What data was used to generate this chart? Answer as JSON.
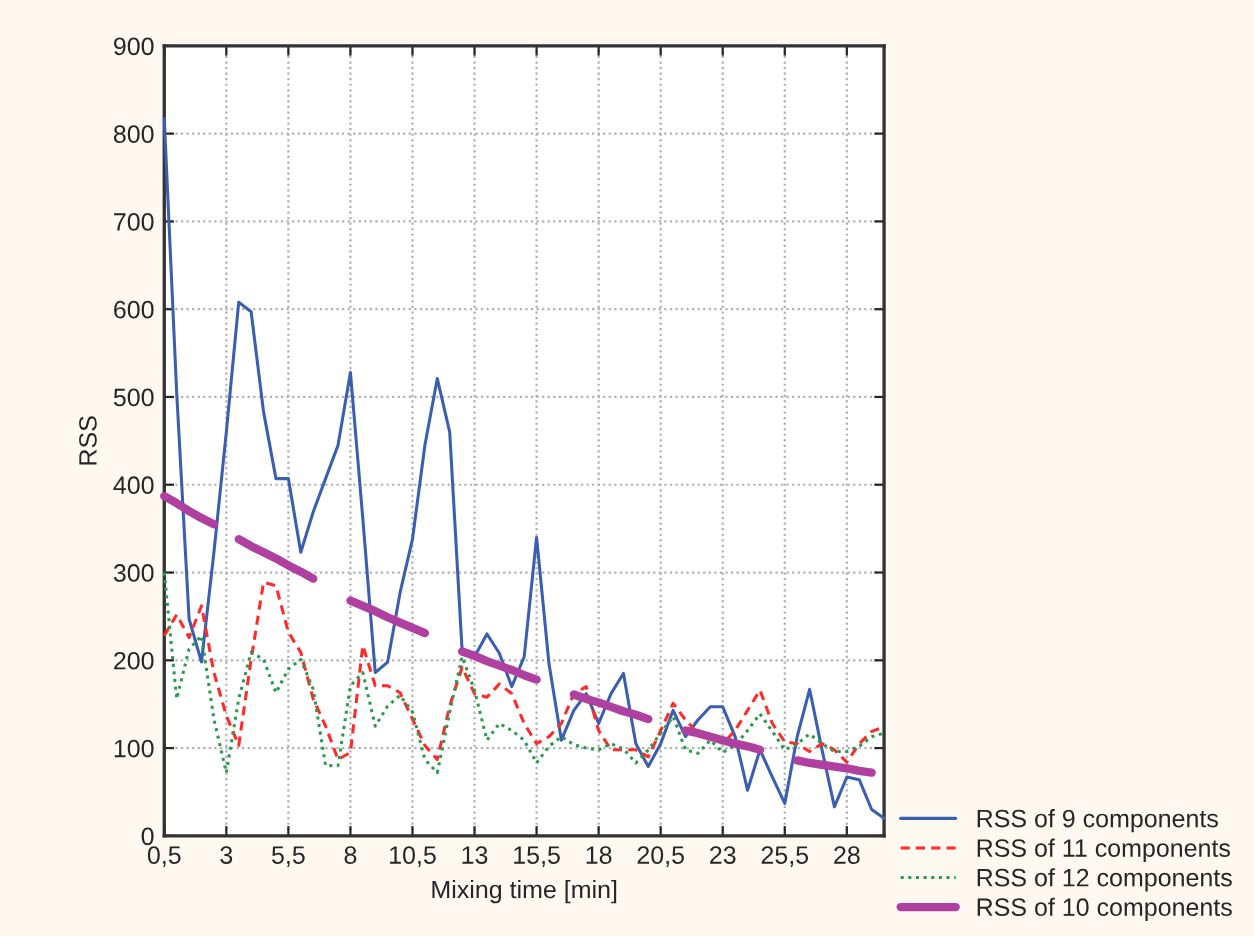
{
  "chart_data": {
    "type": "line",
    "xlabel": "Mixing time [min]",
    "ylabel": "RSS",
    "x": [
      0.5,
      1,
      1.5,
      2,
      2.5,
      3,
      3.5,
      4,
      4.5,
      5,
      5.5,
      6,
      6.5,
      7,
      7.5,
      8,
      8.5,
      9,
      9.5,
      10,
      10.5,
      11,
      11.5,
      12,
      12.5,
      13,
      13.5,
      14,
      14.5,
      15,
      15.5,
      16,
      16.5,
      17,
      17.5,
      18,
      18.5,
      19,
      19.5,
      20,
      20.5,
      21,
      21.5,
      22,
      22.5,
      23,
      23.5,
      24,
      24.5,
      25,
      25.5,
      26,
      26.5,
      27,
      27.5,
      28,
      28.5,
      29,
      29.5
    ],
    "series": [
      {
        "name": "RSS of 9 components",
        "color": "#3a5fb0",
        "line_style": "solid",
        "values": [
          817,
          505,
          247,
          198,
          323,
          460,
          608,
          597,
          483,
          407,
          407,
          323,
          369,
          407,
          445,
          528,
          361,
          186,
          198,
          277,
          338,
          445,
          521,
          460,
          211,
          204,
          230,
          208,
          170,
          204,
          340,
          196,
          109,
          143,
          162,
          128,
          162,
          185,
          105,
          79,
          105,
          143,
          113,
          132,
          147,
          147,
          113,
          52,
          98,
          67,
          37,
          113,
          167,
          98,
          33,
          67,
          64,
          30,
          20
        ]
      },
      {
        "name": "RSS of 11 components",
        "color": "#ff2a2a",
        "line_style": "dashed",
        "values": [
          228,
          252,
          226,
          262,
          186,
          137,
          103,
          201,
          289,
          285,
          232,
          209,
          156,
          125,
          87,
          95,
          217,
          171,
          171,
          163,
          133,
          103,
          87,
          148,
          192,
          162,
          158,
          173,
          162,
          128,
          105,
          113,
          128,
          162,
          170,
          120,
          98,
          98,
          98,
          90,
          120,
          151,
          132,
          117,
          113,
          105,
          120,
          143,
          166,
          128,
          107,
          105,
          96,
          105,
          98,
          84,
          105,
          119,
          124
        ]
      },
      {
        "name": "RSS of 12 components",
        "color": "#2a9a50",
        "line_style": "dotted",
        "values": [
          300,
          156,
          213,
          228,
          133,
          72,
          156,
          209,
          201,
          163,
          190,
          201,
          167,
          80,
          80,
          171,
          186,
          125,
          148,
          160,
          141,
          87,
          72,
          141,
          204,
          166,
          109,
          128,
          120,
          109,
          83,
          102,
          113,
          104,
          100,
          98,
          105,
          99,
          83,
          98,
          117,
          136,
          98,
          94,
          109,
          95,
          103,
          120,
          139,
          119,
          98,
          105,
          116,
          105,
          96,
          96,
          102,
          113,
          117
        ]
      },
      {
        "name": "RSS of 10 components",
        "color": "#b040a0",
        "line_style": "solid",
        "values": [
          387,
          379,
          370,
          362,
          355,
          null,
          338,
          330,
          323,
          316,
          308,
          301,
          293,
          null,
          null,
          268,
          262,
          256,
          249,
          243,
          237,
          231,
          null,
          null,
          210,
          205,
          199,
          194,
          189,
          183,
          178,
          null,
          null,
          161,
          156,
          152,
          147,
          142,
          138,
          133,
          null,
          null,
          120,
          117,
          113,
          109,
          105,
          102,
          98,
          null,
          null,
          86,
          83,
          81,
          79,
          77,
          74,
          72,
          null
        ]
      }
    ],
    "xlim": [
      0.5,
      29.5
    ],
    "xticks": [
      {
        "value": 0.5,
        "label": "0,5"
      },
      3,
      {
        "value": 5.5,
        "label": "5,5"
      },
      8,
      {
        "value": 10.5,
        "label": "10,5"
      },
      13,
      {
        "value": 15.5,
        "label": "15,5"
      },
      18,
      {
        "value": 20.5,
        "label": "20,5"
      },
      23,
      {
        "value": 25.5,
        "label": "25,5"
      },
      28
    ],
    "ylim": [
      0,
      900
    ],
    "yticks": [
      0,
      100,
      200,
      300,
      400,
      500,
      600,
      700,
      800,
      900
    ],
    "grid": true,
    "legend": "bottom right",
    "marker": "none"
  }
}
